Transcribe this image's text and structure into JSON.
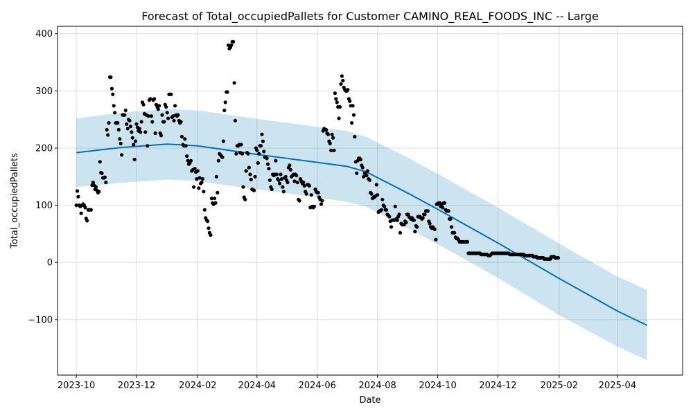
{
  "chart_data": {
    "type": "line",
    "title": "Forecast of Total_occupiedPallets for Customer CAMINO_REAL_FOODS_INC -- Large",
    "xlabel": "Date",
    "ylabel": "Total_occupiedPallets",
    "x_axis": {
      "type": "date",
      "range": [
        "2023-09-12",
        "2025-06-06"
      ],
      "ticks": [
        "2023-10-01",
        "2023-12-01",
        "2024-02-01",
        "2024-04-01",
        "2024-06-01",
        "2024-08-01",
        "2024-10-01",
        "2024-12-01",
        "2025-02-01",
        "2025-04-01"
      ],
      "tick_labels": [
        "2023-10",
        "2023-12",
        "2024-02",
        "2024-04",
        "2024-06",
        "2024-08",
        "2024-10",
        "2024-12",
        "2025-02",
        "2025-04"
      ]
    },
    "y_axis": {
      "range": [
        -197,
        413
      ],
      "ticks": [
        -100,
        0,
        100,
        200,
        300,
        400
      ],
      "tick_labels": [
        "−100",
        "0",
        "100",
        "200",
        "300",
        "400"
      ]
    },
    "grid": true,
    "colors": {
      "forecast_line": "#0072B2",
      "uncertainty_band": "#0072B2",
      "observed_points": "#000000",
      "grid": "#dddddd"
    },
    "forecast": {
      "x": [
        "2023-10-01",
        "2023-11-15",
        "2024-01-01",
        "2024-02-01",
        "2024-04-01",
        "2024-06-01",
        "2024-07-01",
        "2024-07-20",
        "2024-09-01",
        "2024-10-01",
        "2024-12-01",
        "2025-02-01",
        "2025-04-01",
        "2025-05-01"
      ],
      "yhat": [
        192,
        201,
        207,
        204,
        189,
        175,
        168,
        159,
        121,
        93,
        34,
        -28,
        -85,
        -110
      ],
      "yhat_lower": [
        132,
        139,
        145,
        142,
        128,
        114,
        106,
        98,
        60,
        32,
        -27,
        -92,
        -147,
        -171
      ],
      "yhat_upper": [
        252,
        262,
        268,
        266,
        251,
        237,
        230,
        220,
        183,
        155,
        96,
        33,
        -25,
        -48
      ]
    },
    "observed": {
      "x": [
        "2023-10-01",
        "2023-10-02",
        "2023-10-03",
        "2023-10-04",
        "2023-10-05",
        "2023-10-06",
        "2023-10-07",
        "2023-10-08",
        "2023-10-09",
        "2023-10-10",
        "2023-10-11",
        "2023-10-12",
        "2023-10-13",
        "2023-10-14",
        "2023-10-15",
        "2023-10-16",
        "2023-10-17",
        "2023-10-18",
        "2023-10-19",
        "2023-10-20",
        "2023-10-21",
        "2023-10-22",
        "2023-10-23",
        "2023-10-24",
        "2023-10-25",
        "2023-10-26",
        "2023-10-27",
        "2023-10-28",
        "2023-10-29",
        "2023-10-30",
        "2023-10-31",
        "2023-11-01",
        "2023-11-02",
        "2023-11-03",
        "2023-11-04",
        "2023-11-05",
        "2023-11-06",
        "2023-11-07",
        "2023-11-08",
        "2023-11-09",
        "2023-11-10",
        "2023-11-11",
        "2023-11-12",
        "2023-11-13",
        "2023-11-14",
        "2023-11-15",
        "2023-11-16",
        "2023-11-17",
        "2023-11-18",
        "2023-11-19",
        "2023-11-20",
        "2023-11-21",
        "2023-11-22",
        "2023-11-23",
        "2023-11-24",
        "2023-11-25",
        "2023-11-26",
        "2023-11-27",
        "2023-11-28",
        "2023-11-29",
        "2023-11-30",
        "2023-12-01",
        "2023-12-02",
        "2023-12-03",
        "2023-12-04",
        "2023-12-05",
        "2023-12-06",
        "2023-12-07",
        "2023-12-08",
        "2023-12-09",
        "2023-12-10",
        "2023-12-11",
        "2023-12-12",
        "2023-12-13",
        "2023-12-14",
        "2023-12-15",
        "2023-12-16",
        "2023-12-17",
        "2023-12-18",
        "2023-12-19",
        "2023-12-20",
        "2023-12-21",
        "2023-12-22",
        "2023-12-23",
        "2023-12-24",
        "2023-12-25",
        "2023-12-26",
        "2023-12-27",
        "2023-12-28",
        "2023-12-29",
        "2023-12-30",
        "2023-12-31",
        "2024-01-01",
        "2024-01-02",
        "2024-01-03",
        "2024-01-04",
        "2024-01-05",
        "2024-01-06",
        "2024-01-07",
        "2024-01-08",
        "2024-01-09",
        "2024-01-10",
        "2024-01-11",
        "2024-01-12",
        "2024-01-13",
        "2024-01-14",
        "2024-01-15",
        "2024-01-16",
        "2024-01-17",
        "2024-01-18",
        "2024-01-19",
        "2024-01-20",
        "2024-01-21",
        "2024-01-22",
        "2024-01-23",
        "2024-01-24",
        "2024-01-25",
        "2024-01-26",
        "2024-01-27",
        "2024-01-28",
        "2024-01-29",
        "2024-01-30",
        "2024-01-31",
        "2024-02-01",
        "2024-02-02",
        "2024-02-03",
        "2024-02-04",
        "2024-02-05",
        "2024-02-06",
        "2024-02-07",
        "2024-02-08",
        "2024-02-09",
        "2024-02-10",
        "2024-02-11",
        "2024-02-12",
        "2024-02-13",
        "2024-02-14",
        "2024-02-15",
        "2024-02-16",
        "2024-02-17",
        "2024-02-18",
        "2024-02-19",
        "2024-02-20",
        "2024-02-21",
        "2024-02-22",
        "2024-02-23",
        "2024-02-24",
        "2024-02-25",
        "2024-02-26",
        "2024-02-27",
        "2024-02-28",
        "2024-02-29",
        "2024-03-01",
        "2024-03-02",
        "2024-03-03",
        "2024-03-04",
        "2024-03-05",
        "2024-03-06",
        "2024-03-07",
        "2024-03-08",
        "2024-03-09",
        "2024-03-10",
        "2024-03-11",
        "2024-03-12",
        "2024-03-13",
        "2024-03-14",
        "2024-03-15",
        "2024-03-16",
        "2024-03-17",
        "2024-03-18",
        "2024-03-19",
        "2024-03-20",
        "2024-03-21",
        "2024-03-22",
        "2024-03-23",
        "2024-03-24",
        "2024-03-25",
        "2024-03-26",
        "2024-03-27",
        "2024-03-28",
        "2024-03-29",
        "2024-03-30",
        "2024-03-31",
        "2024-04-01",
        "2024-04-02",
        "2024-04-03",
        "2024-04-04",
        "2024-04-05",
        "2024-04-06",
        "2024-04-07",
        "2024-04-08",
        "2024-04-09",
        "2024-04-10",
        "2024-04-11",
        "2024-04-12",
        "2024-04-13",
        "2024-04-14",
        "2024-04-15",
        "2024-04-16",
        "2024-04-17",
        "2024-04-18",
        "2024-04-19",
        "2024-04-20",
        "2024-04-21",
        "2024-04-22",
        "2024-04-23",
        "2024-04-24",
        "2024-04-25",
        "2024-04-26",
        "2024-04-27",
        "2024-04-28",
        "2024-04-29",
        "2024-04-30",
        "2024-05-01",
        "2024-05-02",
        "2024-05-03",
        "2024-05-04",
        "2024-05-05",
        "2024-05-06",
        "2024-05-07",
        "2024-05-08",
        "2024-05-09",
        "2024-05-10",
        "2024-05-11",
        "2024-05-12",
        "2024-05-13",
        "2024-05-14",
        "2024-05-15",
        "2024-05-16",
        "2024-05-17",
        "2024-05-18",
        "2024-05-19",
        "2024-05-20",
        "2024-05-21",
        "2024-05-22",
        "2024-05-23",
        "2024-05-24",
        "2024-05-25",
        "2024-05-26",
        "2024-05-27",
        "2024-05-28",
        "2024-05-29",
        "2024-05-30",
        "2024-05-31",
        "2024-06-01",
        "2024-06-02",
        "2024-06-03",
        "2024-06-04",
        "2024-06-05",
        "2024-06-06",
        "2024-06-07",
        "2024-06-08",
        "2024-06-09",
        "2024-06-10",
        "2024-06-11",
        "2024-06-12",
        "2024-06-13",
        "2024-06-14",
        "2024-06-15",
        "2024-06-16",
        "2024-06-17",
        "2024-06-18",
        "2024-06-19",
        "2024-06-20",
        "2024-06-21",
        "2024-06-22",
        "2024-06-23",
        "2024-06-24",
        "2024-06-25",
        "2024-06-26",
        "2024-06-27",
        "2024-06-28",
        "2024-06-29",
        "2024-06-30",
        "2024-07-01",
        "2024-07-02",
        "2024-07-03",
        "2024-07-04",
        "2024-07-05",
        "2024-07-06",
        "2024-07-07",
        "2024-07-08",
        "2024-07-09",
        "2024-07-10",
        "2024-07-11",
        "2024-07-12",
        "2024-07-13",
        "2024-07-14",
        "2024-07-15",
        "2024-07-16",
        "2024-07-17",
        "2024-07-18",
        "2024-07-19",
        "2024-07-20",
        "2024-07-21",
        "2024-07-22",
        "2024-07-23",
        "2024-07-24",
        "2024-07-25",
        "2024-07-26",
        "2024-07-27",
        "2024-07-28",
        "2024-07-29",
        "2024-07-30",
        "2024-07-31",
        "2024-08-01",
        "2024-08-02",
        "2024-08-03",
        "2024-08-04",
        "2024-08-05",
        "2024-08-06",
        "2024-08-07",
        "2024-08-08",
        "2024-08-09",
        "2024-08-10",
        "2024-08-11",
        "2024-08-12",
        "2024-08-13",
        "2024-08-14",
        "2024-08-15",
        "2024-08-16",
        "2024-08-17",
        "2024-08-18",
        "2024-08-19",
        "2024-08-20",
        "2024-08-21",
        "2024-08-22",
        "2024-08-23",
        "2024-08-24",
        "2024-08-25",
        "2024-08-26",
        "2024-08-27",
        "2024-08-28",
        "2024-08-29",
        "2024-08-30",
        "2024-08-31",
        "2024-09-01",
        "2024-09-02",
        "2024-09-03",
        "2024-09-04",
        "2024-09-05",
        "2024-09-06",
        "2024-09-07",
        "2024-09-08",
        "2024-09-09",
        "2024-09-10",
        "2024-09-11",
        "2024-09-12",
        "2024-09-13",
        "2024-09-14",
        "2024-09-15",
        "2024-09-16",
        "2024-09-17",
        "2024-09-18",
        "2024-09-19",
        "2024-09-20",
        "2024-09-21",
        "2024-09-22",
        "2024-09-23",
        "2024-09-24",
        "2024-09-25",
        "2024-09-26",
        "2024-09-27",
        "2024-09-28",
        "2024-09-29",
        "2024-09-30",
        "2024-10-01",
        "2024-10-02",
        "2024-10-03",
        "2024-10-04",
        "2024-10-05",
        "2024-10-06",
        "2024-10-07",
        "2024-10-08",
        "2024-10-09",
        "2024-10-10",
        "2024-10-11",
        "2024-10-12",
        "2024-10-13",
        "2024-10-14",
        "2024-10-15",
        "2024-10-16",
        "2024-10-17",
        "2024-10-18",
        "2024-10-19",
        "2024-10-20",
        "2024-10-21",
        "2024-10-22",
        "2024-10-23",
        "2024-10-24",
        "2024-10-25",
        "2024-10-26",
        "2024-10-27",
        "2024-10-28",
        "2024-10-29",
        "2024-10-30",
        "2024-10-31",
        "2024-11-01",
        "2024-11-02",
        "2024-11-03",
        "2024-11-04",
        "2024-11-05",
        "2024-11-06",
        "2024-11-07",
        "2024-11-08",
        "2024-11-09",
        "2024-11-10",
        "2024-11-11",
        "2024-11-12",
        "2024-11-13",
        "2024-11-14",
        "2024-11-15",
        "2024-11-16",
        "2024-11-17",
        "2024-11-18",
        "2024-11-19",
        "2024-11-20",
        "2024-11-21",
        "2024-11-22",
        "2024-11-23",
        "2024-11-24",
        "2024-11-25",
        "2024-11-26",
        "2024-11-27",
        "2024-11-28",
        "2024-11-29",
        "2024-11-30",
        "2024-12-01",
        "2024-12-02",
        "2024-12-03",
        "2024-12-04",
        "2024-12-05",
        "2024-12-06",
        "2024-12-07",
        "2024-12-08",
        "2024-12-09",
        "2024-12-10",
        "2024-12-11",
        "2024-12-12",
        "2024-12-13",
        "2024-12-14",
        "2024-12-15",
        "2024-12-16",
        "2024-12-17",
        "2024-12-18",
        "2024-12-19",
        "2024-12-20",
        "2024-12-21",
        "2024-12-22",
        "2024-12-23",
        "2024-12-24",
        "2024-12-25",
        "2024-12-26",
        "2024-12-27",
        "2024-12-28",
        "2024-12-29",
        "2024-12-30",
        "2024-12-31",
        "2025-01-01",
        "2025-01-02",
        "2025-01-03",
        "2025-01-04",
        "2025-01-05",
        "2025-01-06",
        "2025-01-07",
        "2025-01-08",
        "2025-01-09",
        "2025-01-10",
        "2025-01-11",
        "2025-01-12",
        "2025-01-13",
        "2025-01-14",
        "2025-01-15",
        "2025-01-16",
        "2025-01-17",
        "2025-01-18",
        "2025-01-19",
        "2025-01-20",
        "2025-01-21",
        "2025-01-22",
        "2025-01-23",
        "2025-01-24",
        "2025-01-25",
        "2025-01-26",
        "2025-01-27",
        "2025-01-28",
        "2025-01-29",
        "2025-01-30",
        "2025-01-31"
      ],
      "y": [
        100,
        125,
        115,
        100,
        98,
        86,
        100,
        102,
        100,
        96,
        77,
        73,
        92,
        92,
        92,
        92,
        135,
        140,
        135,
        128,
        132,
        126,
        122,
        124,
        176,
        157,
        156,
        148,
        148,
        149,
        140,
        232,
        223,
        244,
        324,
        324,
        304,
        294,
        274,
        262,
        244,
        244,
        244,
        232,
        216,
        208,
        188,
        258,
        258,
        258,
        266,
        242,
        234,
        250,
        248,
        238,
        228,
        218,
        206,
        180,
        212,
        242,
        236,
        230,
        234,
        228,
        246,
        280,
        276,
        260,
        228,
        258,
        204,
        256,
        284,
        286,
        256,
        246,
        284,
        286,
        226,
        276,
        272,
        268,
        274,
        226,
        222,
        258,
        246,
        246,
        276,
        272,
        262,
        252,
        294,
        294,
        294,
        254,
        256,
        248,
        274,
        258,
        256,
        258,
        248,
        244,
        246,
        220,
        206,
        204,
        216,
        204,
        186,
        178,
        172,
        174,
        178,
        160,
        162,
        132,
        164,
        158,
        146,
        160,
        130,
        148,
        138,
        140,
        146,
        124,
        92,
        78,
        74,
        72,
        60,
        52,
        48,
        112,
        104,
        102,
        112,
        104,
        150,
        122,
        178,
        190,
        188,
        186,
        184,
        212,
        266,
        280,
        298,
        298,
        380,
        374,
        376,
        380,
        386,
        386,
        314,
        248,
        190,
        204,
        204,
        206,
        192,
        206,
        190,
        132,
        114,
        110,
        160,
        192,
        190,
        166,
        154,
        145,
        128,
        127,
        126,
        150,
        200,
        196,
        174,
        190,
        204,
        204,
        224,
        212,
        194,
        184,
        184,
        182,
        172,
        164,
        144,
        132,
        128,
        154,
        152,
        154,
        178,
        154,
        146,
        144,
        138,
        154,
        146,
        132,
        124,
        148,
        150,
        144,
        140,
        166,
        170,
        162,
        150,
        152,
        154,
        142,
        154,
        152,
        140,
        110,
        108,
        146,
        142,
        138,
        140,
        134,
        124,
        120,
        136,
        136,
        134,
        96,
        118,
        98,
        96,
        98,
        128,
        124,
        122,
        122,
        114,
        110,
        102,
        108,
        230,
        234,
        232,
        232,
        226,
        224,
        212,
        208,
        196,
        224,
        218,
        196,
        296,
        286,
        280,
        272,
        252,
        272,
        312,
        326,
        318,
        306,
        302,
        300,
        300,
        302,
        286,
        282,
        274,
        244,
        274,
        258,
        220,
        176,
        156,
        178,
        182,
        182,
        180,
        170,
        166,
        150,
        156,
        156,
        152,
        160,
        146,
        144,
        122,
        120,
        112,
        114,
        114,
        116,
        136,
        118,
        88,
        90,
        90,
        92,
        110,
        100,
        98,
        92,
        92,
        84,
        82,
        80,
        72,
        62,
        74,
        74,
        74,
        98,
        76,
        74,
        80,
        84,
        52,
        68,
        66,
        66,
        66,
        72,
        70,
        84,
        84,
        80,
        78,
        76,
        78,
        74,
        74,
        54,
        64,
        62,
        80,
        80,
        80,
        78,
        76,
        78,
        84,
        84,
        90,
        90,
        90,
        72,
        68,
        62,
        60,
        62,
        60,
        58,
        40,
        102,
        102,
        104,
        104,
        98,
        102,
        96,
        104,
        104,
        92,
        90,
        90,
        90,
        76,
        76,
        62,
        52,
        52,
        52,
        44,
        42,
        42,
        40,
        36,
        36,
        36,
        36,
        36,
        36,
        36,
        36,
        36,
        16,
        16,
        16,
        16,
        16,
        16,
        16,
        16,
        16,
        16,
        16,
        16,
        16,
        14,
        14,
        14,
        14,
        14,
        14,
        14,
        12,
        12,
        12,
        14,
        16,
        16,
        16,
        16,
        16,
        16,
        16,
        16,
        16,
        16,
        16,
        16,
        16,
        16,
        16,
        16,
        16,
        16,
        14,
        14,
        14,
        14,
        14,
        14,
        14,
        14,
        14,
        14,
        14,
        14,
        14,
        14,
        14,
        12,
        12,
        12,
        12,
        12,
        12,
        12,
        12,
        12,
        10,
        10,
        10,
        10,
        8,
        8,
        8,
        8,
        8,
        8,
        8,
        6,
        6,
        6,
        6,
        6,
        6,
        6,
        10,
        10,
        10,
        10,
        8,
        8,
        8,
        8
      ]
    }
  }
}
